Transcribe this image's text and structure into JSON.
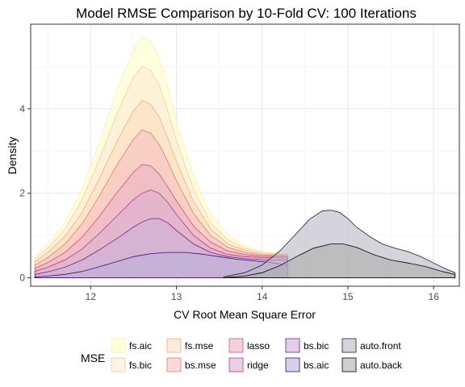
{
  "chart_data": {
    "type": "area",
    "subtype": "stacked-density",
    "title": "Model RMSE Comparison by 10-Fold CV: 100 Iterations",
    "xlabel": "CV Root Mean Square Error",
    "ylabel": "Density",
    "xlim": [
      11.3,
      16.3
    ],
    "ylim": [
      -0.2,
      6.0
    ],
    "x_ticks": [
      12,
      13,
      14,
      15,
      16
    ],
    "y_ticks": [
      0,
      2,
      4
    ],
    "grid": true,
    "legend": {
      "title": "MSE",
      "position": "bottom",
      "entries": [
        "fs.aic",
        "fs.bic",
        "fs.mse",
        "bs.mse",
        "lasso",
        "ridge",
        "bs.bic",
        "bs.aic",
        "auto.front",
        "auto.back"
      ]
    },
    "series": [
      {
        "name": "fs.aic",
        "fill": "#FFFFCC",
        "stroke": "#F7F0A8",
        "x": [
          11.35,
          11.5,
          11.7,
          11.9,
          12.1,
          12.3,
          12.5,
          12.6,
          12.7,
          12.8,
          12.9,
          13.0,
          13.2,
          13.4,
          13.6,
          13.8,
          14.0,
          14.2,
          14.3
        ],
        "y": [
          0.5,
          0.8,
          1.3,
          2.1,
          3.2,
          4.4,
          5.4,
          5.7,
          5.6,
          5.2,
          4.5,
          3.7,
          2.4,
          1.5,
          1.0,
          0.75,
          0.63,
          0.58,
          0.56
        ]
      },
      {
        "name": "fs.bic",
        "fill": "#FEEBD2",
        "stroke": "#F9C9A0",
        "x": [
          11.35,
          11.5,
          11.7,
          11.9,
          12.1,
          12.3,
          12.5,
          12.6,
          12.7,
          12.8,
          12.9,
          13.0,
          13.2,
          13.4,
          13.6,
          13.8,
          14.0,
          14.2,
          14.3
        ],
        "y": [
          0.45,
          0.7,
          1.15,
          1.85,
          2.8,
          3.85,
          4.75,
          5.0,
          4.9,
          4.55,
          3.95,
          3.25,
          2.1,
          1.3,
          0.9,
          0.7,
          0.6,
          0.56,
          0.55
        ]
      },
      {
        "name": "fs.mse",
        "fill": "#FCDCC2",
        "stroke": "#F6A982",
        "x": [
          11.35,
          11.5,
          11.7,
          11.9,
          12.1,
          12.3,
          12.5,
          12.6,
          12.7,
          12.8,
          12.9,
          13.0,
          13.2,
          13.4,
          13.6,
          13.8,
          14.0,
          14.2,
          14.3
        ],
        "y": [
          0.38,
          0.6,
          0.98,
          1.55,
          2.35,
          3.2,
          3.95,
          4.2,
          4.1,
          3.8,
          3.3,
          2.75,
          1.8,
          1.15,
          0.8,
          0.65,
          0.57,
          0.54,
          0.53
        ]
      },
      {
        "name": "bs.mse",
        "fill": "#F6C0C0",
        "stroke": "#E07A7A",
        "x": [
          11.35,
          11.5,
          11.7,
          11.9,
          12.1,
          12.3,
          12.5,
          12.6,
          12.7,
          12.8,
          12.9,
          13.0,
          13.2,
          13.4,
          13.6,
          13.8,
          14.0,
          14.2,
          14.3
        ],
        "y": [
          0.3,
          0.48,
          0.8,
          1.28,
          1.93,
          2.65,
          3.28,
          3.5,
          3.42,
          3.15,
          2.75,
          2.3,
          1.52,
          1.0,
          0.72,
          0.6,
          0.54,
          0.52,
          0.51
        ]
      },
      {
        "name": "lasso",
        "fill": "#EAB3C6",
        "stroke": "#D0507A",
        "x": [
          11.35,
          11.5,
          11.7,
          11.9,
          12.1,
          12.3,
          12.5,
          12.6,
          12.7,
          12.8,
          12.9,
          13.0,
          13.2,
          13.4,
          13.6,
          13.8,
          14.0,
          14.2,
          14.3
        ],
        "y": [
          0.22,
          0.36,
          0.6,
          0.96,
          1.45,
          2.0,
          2.5,
          2.68,
          2.65,
          2.45,
          2.15,
          1.82,
          1.22,
          0.84,
          0.63,
          0.55,
          0.51,
          0.5,
          0.5
        ]
      },
      {
        "name": "ridge",
        "fill": "#DBB1D4",
        "stroke": "#B03A8E",
        "x": [
          11.35,
          11.5,
          11.7,
          11.9,
          12.1,
          12.3,
          12.5,
          12.6,
          12.7,
          12.8,
          12.9,
          13.0,
          13.2,
          13.4,
          13.6,
          13.8,
          14.0,
          14.2,
          14.3
        ],
        "y": [
          0.15,
          0.25,
          0.42,
          0.68,
          1.05,
          1.45,
          1.85,
          2.0,
          2.08,
          2.0,
          1.78,
          1.5,
          1.0,
          0.7,
          0.55,
          0.5,
          0.48,
          0.47,
          0.47
        ]
      },
      {
        "name": "bs.bic",
        "fill": "#CBB0D6",
        "stroke": "#7A1F8E",
        "x": [
          11.35,
          11.5,
          11.7,
          11.9,
          12.1,
          12.3,
          12.5,
          12.6,
          12.7,
          12.8,
          12.9,
          13.0,
          13.2,
          13.4,
          13.6,
          13.8,
          14.0,
          14.2,
          14.3
        ],
        "y": [
          0.08,
          0.14,
          0.25,
          0.42,
          0.66,
          0.92,
          1.2,
          1.32,
          1.4,
          1.4,
          1.3,
          1.12,
          0.8,
          0.6,
          0.5,
          0.45,
          0.43,
          0.42,
          0.42
        ]
      },
      {
        "name": "bs.aic",
        "fill": "#BDB0D8",
        "stroke": "#3A0C78",
        "x": [
          11.35,
          11.5,
          11.7,
          11.9,
          12.1,
          12.3,
          12.5,
          12.7,
          12.9,
          13.1,
          13.3,
          13.5,
          13.7,
          13.9,
          14.1,
          14.3
        ],
        "y": [
          0.02,
          0.04,
          0.08,
          0.15,
          0.26,
          0.38,
          0.5,
          0.57,
          0.6,
          0.6,
          0.56,
          0.5,
          0.44,
          0.4,
          0.36,
          0.3
        ]
      },
      {
        "name": "auto.front",
        "fill": "#B9B8C6",
        "stroke": "#1E1E28",
        "x": [
          13.55,
          13.8,
          14.0,
          14.2,
          14.4,
          14.55,
          14.7,
          14.8,
          14.9,
          15.0,
          15.1,
          15.25,
          15.4,
          15.55,
          15.7,
          15.85,
          16.0,
          16.15,
          16.25
        ],
        "y": [
          0.02,
          0.12,
          0.3,
          0.62,
          1.05,
          1.38,
          1.58,
          1.6,
          1.55,
          1.4,
          1.2,
          0.98,
          0.8,
          0.7,
          0.62,
          0.5,
          0.35,
          0.2,
          0.12
        ]
      },
      {
        "name": "auto.back",
        "fill": "#AEAEAE",
        "stroke": "#000000",
        "x": [
          13.55,
          13.8,
          14.0,
          14.2,
          14.4,
          14.6,
          14.8,
          14.95,
          15.1,
          15.3,
          15.5,
          15.7,
          15.9,
          16.1,
          16.25
        ],
        "y": [
          0.0,
          0.04,
          0.12,
          0.28,
          0.5,
          0.7,
          0.8,
          0.8,
          0.72,
          0.55,
          0.42,
          0.35,
          0.27,
          0.15,
          0.08
        ]
      }
    ]
  }
}
